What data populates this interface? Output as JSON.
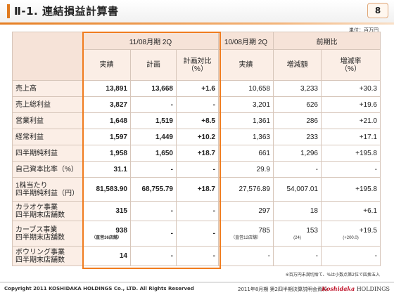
{
  "header": {
    "title": "Ⅱ-1. 連結損益計算書",
    "page_number": "8"
  },
  "unit_note": "単位：百万円",
  "table": {
    "group_headers": {
      "current": "11/08月期 2Q",
      "previous": "10/08月期 2Q",
      "comparison": "前期比"
    },
    "sub_headers": {
      "actual": "実績",
      "plan": "計画",
      "plan_ratio": "計画対比\n（%）",
      "prev_actual": "実績",
      "change_amount": "増減額",
      "change_rate": "増減率\n（%）"
    },
    "rows": [
      {
        "label": "売上高",
        "actual": "13,891",
        "plan": "13,668",
        "plan_ratio": "+1.6",
        "prev_actual": "10,658",
        "change_amount": "3,233",
        "change_rate": "+30.3"
      },
      {
        "label": "売上総利益",
        "actual": "3,827",
        "plan": "-",
        "plan_ratio": "-",
        "prev_actual": "3,201",
        "change_amount": "626",
        "change_rate": "+19.6"
      },
      {
        "label": "営業利益",
        "actual": "1,648",
        "plan": "1,519",
        "plan_ratio": "+8.5",
        "prev_actual": "1,361",
        "change_amount": "286",
        "change_rate": "+21.0"
      },
      {
        "label": "経常利益",
        "actual": "1,597",
        "plan": "1,449",
        "plan_ratio": "+10.2",
        "prev_actual": "1,363",
        "change_amount": "233",
        "change_rate": "+17.1"
      },
      {
        "label": "四半期純利益",
        "actual": "1,958",
        "plan": "1,650",
        "plan_ratio": "+18.7",
        "prev_actual": "661",
        "change_amount": "1,296",
        "change_rate": "+195.8"
      },
      {
        "label": "自己資本比率（%）",
        "actual": "31.1",
        "plan": "-",
        "plan_ratio": "-",
        "prev_actual": "29.9",
        "change_amount": "-",
        "change_rate": "-"
      },
      {
        "label": "1株当たり\n四半期純利益（円）",
        "actual": "81,583.90",
        "plan": "68,755.79",
        "plan_ratio": "+18.7",
        "prev_actual": "27,576.89",
        "change_amount": "54,007.01",
        "change_rate": "+195.8"
      },
      {
        "label": "カラオケ事業\n四半期末店舗数",
        "actual": "315",
        "plan": "-",
        "plan_ratio": "-",
        "prev_actual": "297",
        "change_amount": "18",
        "change_rate": "+6.1"
      },
      {
        "label": "カーブス事業\n四半期末店舗数",
        "actual": "938",
        "actual_note": "（直営36店舗）",
        "plan": "-",
        "plan_ratio": "-",
        "prev_actual": "785",
        "prev_note": "（直営12店舗）",
        "change_amount": "153",
        "change_note": "(24)",
        "change_rate": "+19.5",
        "rate_note": "(+200.0)"
      },
      {
        "label": "ボウリング事業\n四半期末店舗数",
        "actual": "14",
        "plan": "-",
        "plan_ratio": "-",
        "prev_actual": "-",
        "change_amount": "-",
        "change_rate": "-"
      }
    ]
  },
  "footnote": "※百万円未満切捨て、%は小数点第2位で四捨五入",
  "footer": {
    "copyright": "Copyright 2011 KOSHIDAKA HOLDINGS Co., LTD. All Rights Reserved",
    "doc_title": "2011年8月期 第2四半期決算説明会資料",
    "brand_mark": "Koshidaka",
    "brand_suffix": "HOLDINGS"
  }
}
